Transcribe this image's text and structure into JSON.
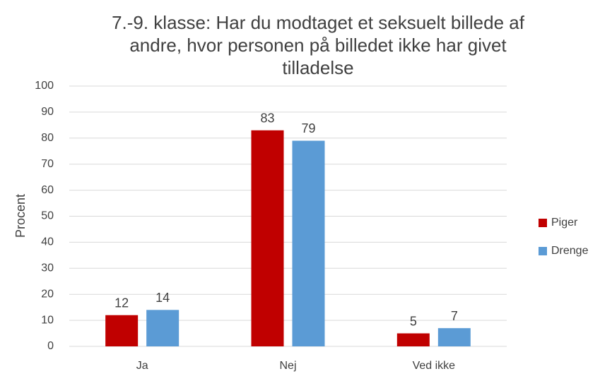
{
  "chart_data": {
    "type": "bar",
    "title": "7.-9. klasse: Har du modtaget et seksuelt billede af andre, hvor personen på billedet ikke har givet tilladelse",
    "y_label": "Procent",
    "categories": [
      "Ja",
      "Nej",
      "Ved ikke"
    ],
    "series": [
      {
        "name": "Piger",
        "color": "#c00000",
        "values": [
          12,
          83,
          5
        ]
      },
      {
        "name": "Drenge",
        "color": "#5b9bd5",
        "values": [
          14,
          79,
          7
        ]
      }
    ],
    "ylim": [
      0,
      100
    ],
    "yticks": [
      0,
      10,
      20,
      30,
      40,
      50,
      60,
      70,
      80,
      90,
      100
    ],
    "grid": true,
    "legend": "right"
  }
}
